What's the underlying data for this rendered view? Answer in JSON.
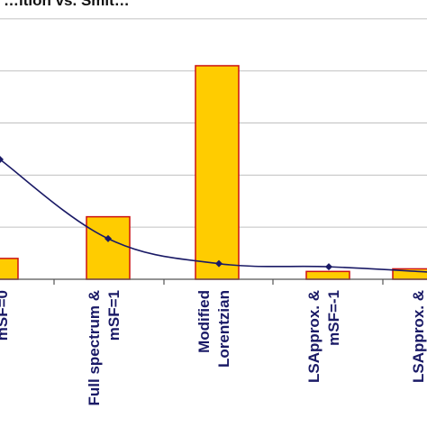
{
  "title": "…ition vs. Smit…",
  "chart_data": {
    "type": "bar",
    "categories": [
      [
        "mSF=0"
      ],
      [
        "Full spectrum &",
        "mSF=1"
      ],
      [
        "Modified",
        "Lorentzian"
      ],
      [
        "LSApprox. &",
        "mSF=-1"
      ],
      [
        "LSApprox. &",
        "…"
      ]
    ],
    "series": [
      {
        "kind": "bar",
        "values": [
          0.4,
          1.2,
          4.1,
          0.15,
          0.2
        ]
      },
      {
        "kind": "line",
        "values": [
          2.3,
          0.78,
          0.3,
          0.24,
          0.14
        ]
      }
    ],
    "ylim": [
      0,
      5
    ],
    "grid": true,
    "colors": {
      "bar_fill": "#ffcc00",
      "bar_stroke": "#cc1111",
      "line": "#1a1a66",
      "grid": "#c0c0c0",
      "axis": "#555555"
    }
  }
}
